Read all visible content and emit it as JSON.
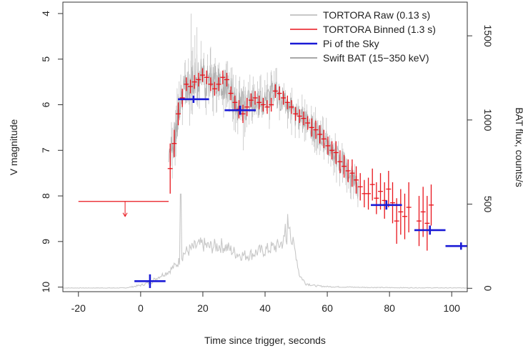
{
  "chart_data": {
    "type": "scatter",
    "title": "",
    "xlabel": "Time since trigger, seconds",
    "ylabel": "V magnitude",
    "y2label": "BAT flux, counts/s",
    "xlim": [
      -25,
      105
    ],
    "ylim": [
      10.1,
      3.75
    ],
    "y2lim": [
      -20,
      1700
    ],
    "x_ticks": [
      -20,
      0,
      20,
      40,
      60,
      80,
      100
    ],
    "y_ticks": [
      4,
      5,
      6,
      7,
      8,
      9,
      10
    ],
    "y2_ticks": [
      0,
      500,
      1000,
      1500
    ],
    "legend_position": "top-right",
    "legend": [
      {
        "label": "TORTORA Raw (0.13 s)",
        "color": "#b5b5b5"
      },
      {
        "label": "TORTORA Binned (1.3 s)",
        "color": "#e8141c"
      },
      {
        "label": "Pi of the Sky",
        "color": "#1a1ad6"
      },
      {
        "label": "Swift BAT (15−350 keV)",
        "color": "#8c8c8c"
      }
    ],
    "upper_limit": {
      "x1": -20,
      "x2": 9,
      "y": 8.12,
      "arrow_x": -5,
      "arrow_to": 8.45
    },
    "series": [
      {
        "name": "TORTORA Binned (1.3 s)",
        "color": "#e8141c",
        "points": [
          [
            9.5,
            7.4,
            0.55
          ],
          [
            10.8,
            6.85,
            0.3
          ],
          [
            12.1,
            6.2,
            0.25
          ],
          [
            13.4,
            5.85,
            0.2
          ],
          [
            14.7,
            5.55,
            0.15
          ],
          [
            16.0,
            5.6,
            0.15
          ],
          [
            17.3,
            5.5,
            0.15
          ],
          [
            18.6,
            5.45,
            0.15
          ],
          [
            19.9,
            5.35,
            0.15
          ],
          [
            21.2,
            5.4,
            0.15
          ],
          [
            22.5,
            5.55,
            0.15
          ],
          [
            23.8,
            5.65,
            0.15
          ],
          [
            25.1,
            5.55,
            0.15
          ],
          [
            26.4,
            5.4,
            0.15
          ],
          [
            27.7,
            5.45,
            0.15
          ],
          [
            29.0,
            5.75,
            0.15
          ],
          [
            30.3,
            5.95,
            0.15
          ],
          [
            31.6,
            6.1,
            0.2
          ],
          [
            32.9,
            6.2,
            0.2
          ],
          [
            34.2,
            6.05,
            0.2
          ],
          [
            35.5,
            5.9,
            0.15
          ],
          [
            36.8,
            5.85,
            0.15
          ],
          [
            38.1,
            5.95,
            0.15
          ],
          [
            39.4,
            6.0,
            0.15
          ],
          [
            40.7,
            6.05,
            0.15
          ],
          [
            42.0,
            6.0,
            0.15
          ],
          [
            43.3,
            5.7,
            0.15
          ],
          [
            44.6,
            5.75,
            0.15
          ],
          [
            45.9,
            5.85,
            0.15
          ],
          [
            47.2,
            5.95,
            0.15
          ],
          [
            48.5,
            6.05,
            0.15
          ],
          [
            49.8,
            6.2,
            0.15
          ],
          [
            51.1,
            6.25,
            0.15
          ],
          [
            52.4,
            6.3,
            0.15
          ],
          [
            53.7,
            6.4,
            0.15
          ],
          [
            55.0,
            6.5,
            0.2
          ],
          [
            56.3,
            6.55,
            0.2
          ],
          [
            57.6,
            6.65,
            0.2
          ],
          [
            58.9,
            6.75,
            0.2
          ],
          [
            60.2,
            6.9,
            0.2
          ],
          [
            61.5,
            7.0,
            0.2
          ],
          [
            62.8,
            7.05,
            0.25
          ],
          [
            64.1,
            7.25,
            0.25
          ],
          [
            65.4,
            7.35,
            0.25
          ],
          [
            66.7,
            7.45,
            0.25
          ],
          [
            68.0,
            7.5,
            0.3
          ],
          [
            69.3,
            7.65,
            0.3
          ],
          [
            70.6,
            7.8,
            0.3
          ],
          [
            71.9,
            7.95,
            0.3
          ],
          [
            73.2,
            7.95,
            0.35
          ],
          [
            74.5,
            7.75,
            0.35
          ],
          [
            75.8,
            8.05,
            0.35
          ],
          [
            77.1,
            7.9,
            0.4
          ],
          [
            78.4,
            8.1,
            0.4
          ],
          [
            79.7,
            7.85,
            0.4
          ],
          [
            81.0,
            8.15,
            0.45
          ],
          [
            82.3,
            8.55,
            0.5
          ],
          [
            83.6,
            8.35,
            0.5
          ],
          [
            84.9,
            8.45,
            0.5
          ],
          [
            86.2,
            8.25,
            0.55
          ],
          [
            89.5,
            8.55,
            0.55
          ],
          [
            90.8,
            8.35,
            0.55
          ],
          [
            92.1,
            8.6,
            0.6
          ],
          [
            93.4,
            8.2,
            0.45
          ]
        ]
      },
      {
        "name": "Pi of the Sky",
        "color": "#1a1ad6",
        "points": [
          [
            3,
            9.87,
            5,
            0.15
          ],
          [
            17,
            5.88,
            5,
            0.08
          ],
          [
            32,
            6.12,
            5,
            0.1
          ],
          [
            79,
            8.2,
            5,
            0.1
          ],
          [
            93,
            8.75,
            5,
            0.1
          ],
          [
            103,
            9.1,
            5,
            0.08
          ]
        ]
      }
    ],
    "bat_profile": [
      [
        -25,
        2
      ],
      [
        -5,
        2
      ],
      [
        -3,
        8
      ],
      [
        0,
        18
      ],
      [
        3,
        35
      ],
      [
        6,
        70
      ],
      [
        9,
        100
      ],
      [
        12,
        150
      ],
      [
        14,
        210
      ],
      [
        16,
        230
      ],
      [
        18,
        250
      ],
      [
        20,
        260
      ],
      [
        22,
        245
      ],
      [
        24,
        250
      ],
      [
        26,
        255
      ],
      [
        28,
        240
      ],
      [
        30,
        215
      ],
      [
        32,
        200
      ],
      [
        34,
        195
      ],
      [
        36,
        205
      ],
      [
        38,
        220
      ],
      [
        40,
        225
      ],
      [
        42,
        240
      ],
      [
        44,
        250
      ],
      [
        46,
        280
      ],
      [
        48,
        320
      ],
      [
        50,
        200
      ],
      [
        51,
        80
      ],
      [
        53,
        30
      ],
      [
        56,
        15
      ],
      [
        60,
        10
      ],
      [
        70,
        6
      ],
      [
        80,
        4
      ],
      [
        90,
        3
      ],
      [
        105,
        2
      ]
    ],
    "raw_envelope": [
      [
        9,
        7.4,
        0.5
      ],
      [
        12,
        6.3,
        0.35
      ],
      [
        14,
        5.6,
        0.4
      ],
      [
        16,
        5.5,
        0.45
      ],
      [
        18,
        5.45,
        0.5
      ],
      [
        20,
        5.4,
        0.45
      ],
      [
        22,
        5.5,
        0.4
      ],
      [
        25,
        5.5,
        0.35
      ],
      [
        28,
        5.6,
        0.35
      ],
      [
        31,
        6.0,
        0.4
      ],
      [
        34,
        6.0,
        0.35
      ],
      [
        37,
        5.9,
        0.3
      ],
      [
        40,
        6.0,
        0.3
      ],
      [
        43,
        5.75,
        0.3
      ],
      [
        46,
        5.9,
        0.3
      ],
      [
        50,
        6.2,
        0.3
      ],
      [
        55,
        6.5,
        0.3
      ],
      [
        60,
        6.85,
        0.3
      ],
      [
        65,
        7.3,
        0.3
      ],
      [
        70,
        7.8,
        0.25
      ]
    ]
  }
}
